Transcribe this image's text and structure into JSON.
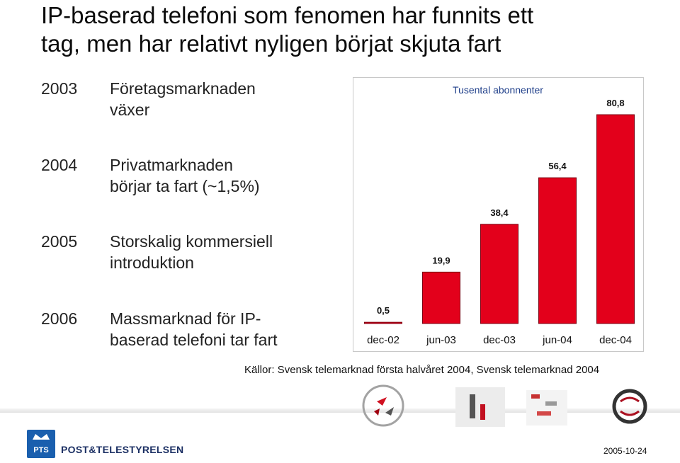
{
  "title": {
    "line1": "IP-baserad telefoni som fenomen har funnits ett",
    "line2": "tag, men har relativt nyligen börjat skjuta fart"
  },
  "timeline": [
    {
      "year": "2003",
      "text": "Företagsmarknaden\nväxer"
    },
    {
      "year": "2004",
      "text": "Privatmarknaden\nbörjar    ta fart (~1,5%)"
    },
    {
      "year": "2005",
      "text": "Storskalig kommersiell\nintroduktion"
    },
    {
      "year": "2006",
      "text": "Massmarknad för IP-\nbaserad telefoni tar fart"
    }
  ],
  "chart_data": {
    "type": "bar",
    "title": "Tusental abonnenter",
    "categories": [
      "dec-02",
      "jun-03",
      "dec-03",
      "jun-04",
      "dec-04"
    ],
    "values": [
      0.5,
      19.9,
      38.4,
      56.4,
      80.8
    ],
    "value_labels": [
      "0,5",
      "19,9",
      "38,4",
      "56,4",
      "80,8"
    ],
    "ylim": [
      0,
      80.8
    ],
    "grid": false,
    "colors": {
      "bar": "#e3001b",
      "bar_edge": "#7a0010"
    }
  },
  "sources": "Källor: Svensk telemarknad första halvåret 2004, Svensk telemarknad 2004",
  "footer": {
    "logo_mark": "PTS",
    "logo_text": "POST&TELESTYRELSEN",
    "date": "2005-10-24"
  }
}
